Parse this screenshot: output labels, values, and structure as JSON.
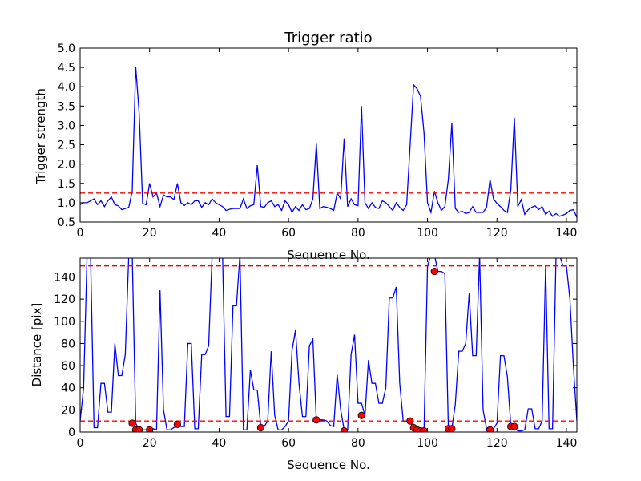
{
  "chart_data": [
    {
      "type": "line",
      "title": "Trigger ratio",
      "xlabel": "Sequence No.",
      "ylabel": "Trigger strength",
      "xlim": [
        0,
        143
      ],
      "ylim": [
        0.5,
        5.0
      ],
      "xticks": [
        "0",
        "20",
        "40",
        "60",
        "80",
        "100",
        "120",
        "140"
      ],
      "yticks": [
        "0.5",
        "1.0",
        "1.5",
        "2.0",
        "2.5",
        "3.0",
        "3.5",
        "4.0",
        "4.5",
        "5.0"
      ],
      "threshold": 1.25,
      "colors": {
        "line": "#0000ff",
        "threshold": "#ff0000"
      },
      "x": [
        0,
        1,
        2,
        3,
        4,
        5,
        6,
        7,
        8,
        9,
        10,
        11,
        12,
        13,
        14,
        15,
        16,
        17,
        18,
        19,
        20,
        21,
        22,
        23,
        24,
        25,
        26,
        27,
        28,
        29,
        30,
        31,
        32,
        33,
        34,
        35,
        36,
        37,
        38,
        39,
        40,
        41,
        42,
        43,
        44,
        45,
        46,
        47,
        48,
        49,
        50,
        51,
        52,
        53,
        54,
        55,
        56,
        57,
        58,
        59,
        60,
        61,
        62,
        63,
        64,
        65,
        66,
        67,
        68,
        69,
        70,
        71,
        72,
        73,
        74,
        75,
        76,
        77,
        78,
        79,
        80,
        81,
        82,
        83,
        84,
        85,
        86,
        87,
        88,
        89,
        90,
        91,
        92,
        93,
        94,
        95,
        96,
        97,
        98,
        99,
        100,
        101,
        102,
        103,
        104,
        105,
        106,
        107,
        108,
        109,
        110,
        111,
        112,
        113,
        114,
        115,
        116,
        117,
        118,
        119,
        120,
        121,
        122,
        123,
        124,
        125,
        126,
        127,
        128,
        129,
        130,
        131,
        132,
        133,
        134,
        135,
        136,
        137,
        138,
        139,
        140,
        141,
        142,
        143
      ],
      "values": [
        0.95,
        1.0,
        1.0,
        1.05,
        1.1,
        0.95,
        1.05,
        0.9,
        1.05,
        1.15,
        0.95,
        0.92,
        0.82,
        0.85,
        0.88,
        1.3,
        4.52,
        3.3,
        0.98,
        0.95,
        1.5,
        1.15,
        1.25,
        0.9,
        1.2,
        1.15,
        1.15,
        1.08,
        1.5,
        1.0,
        0.93,
        1.0,
        0.95,
        1.05,
        1.05,
        0.88,
        1.0,
        0.95,
        1.1,
        1.0,
        0.95,
        0.9,
        0.8,
        0.83,
        0.85,
        0.85,
        0.85,
        1.1,
        0.85,
        0.92,
        0.95,
        1.97,
        0.9,
        0.88,
        1.0,
        1.05,
        0.9,
        0.95,
        0.8,
        1.05,
        0.95,
        0.75,
        0.9,
        0.8,
        0.95,
        0.82,
        0.85,
        1.1,
        2.52,
        0.85,
        0.9,
        0.88,
        0.85,
        0.8,
        1.25,
        1.1,
        2.66,
        0.9,
        1.1,
        0.95,
        0.92,
        3.5,
        1.0,
        0.85,
        1.0,
        0.88,
        0.85,
        1.05,
        1.0,
        0.9,
        0.8,
        1.0,
        0.88,
        0.8,
        0.95,
        2.5,
        4.05,
        3.95,
        3.75,
        2.8,
        1.0,
        0.75,
        1.3,
        1.0,
        0.8,
        0.9,
        1.6,
        3.05,
        0.85,
        0.75,
        0.78,
        0.72,
        0.75,
        0.9,
        0.75,
        0.75,
        0.75,
        0.88,
        1.6,
        1.1,
        0.98,
        0.9,
        0.8,
        0.75,
        1.35,
        3.2,
        0.9,
        1.08,
        0.7,
        0.82,
        0.88,
        0.92,
        0.82,
        0.9,
        0.7,
        0.78,
        0.65,
        0.72,
        0.65,
        0.68,
        0.72,
        0.8,
        0.82,
        0.62
      ]
    },
    {
      "type": "line",
      "title": "",
      "xlabel": "Sequence No.",
      "ylabel": "Distance [pix]",
      "xlim": [
        0,
        143
      ],
      "ylim": [
        0,
        157
      ],
      "xticks": [
        "0",
        "20",
        "40",
        "60",
        "80",
        "100",
        "120",
        "140"
      ],
      "yticks": [
        "0",
        "20",
        "40",
        "60",
        "80",
        "100",
        "120",
        "140"
      ],
      "thresholds": [
        150,
        10
      ],
      "colors": {
        "line": "#0000ff",
        "threshold": "#ff0000",
        "marker": "#ff0000"
      },
      "x": [
        0,
        1,
        2,
        3,
        4,
        5,
        6,
        7,
        8,
        9,
        10,
        11,
        12,
        13,
        14,
        15,
        16,
        17,
        18,
        19,
        20,
        21,
        22,
        23,
        24,
        25,
        26,
        27,
        28,
        29,
        30,
        31,
        32,
        33,
        34,
        35,
        36,
        37,
        38,
        39,
        40,
        41,
        42,
        43,
        44,
        45,
        46,
        47,
        48,
        49,
        50,
        51,
        52,
        53,
        54,
        55,
        56,
        57,
        58,
        59,
        60,
        61,
        62,
        63,
        64,
        65,
        66,
        67,
        68,
        69,
        70,
        71,
        72,
        73,
        74,
        75,
        76,
        77,
        78,
        79,
        80,
        81,
        82,
        83,
        84,
        85,
        86,
        87,
        88,
        89,
        90,
        91,
        92,
        93,
        94,
        95,
        96,
        97,
        98,
        99,
        100,
        101,
        102,
        103,
        104,
        105,
        106,
        107,
        108,
        109,
        110,
        111,
        112,
        113,
        114,
        115,
        116,
        117,
        118,
        119,
        120,
        121,
        122,
        123,
        124,
        125,
        126,
        127,
        128,
        129,
        130,
        131,
        132,
        133,
        134,
        135,
        136,
        137,
        138,
        139,
        140,
        141,
        142,
        143
      ],
      "values": [
        10,
        40,
        160,
        160,
        4,
        4,
        44,
        44,
        18,
        18,
        80,
        51,
        51,
        70,
        160,
        160,
        8,
        2,
        2,
        2,
        2,
        3,
        2,
        128,
        20,
        2,
        2,
        4,
        6,
        5,
        5,
        80,
        80,
        3,
        3,
        70,
        70,
        78,
        160,
        160,
        160,
        160,
        14,
        14,
        114,
        114,
        160,
        2,
        2,
        56,
        38,
        38,
        5,
        5,
        10,
        73,
        15,
        2,
        2,
        5,
        10,
        74,
        92,
        44,
        14,
        14,
        78,
        84,
        10,
        11,
        11,
        10,
        6,
        5,
        52,
        20,
        2,
        2,
        70,
        88,
        26,
        26,
        15,
        65,
        44,
        44,
        26,
        26,
        40,
        121,
        121,
        131,
        44,
        10,
        10,
        10,
        2,
        2,
        2,
        2,
        150,
        160,
        160,
        145,
        145,
        143,
        3,
        3,
        25,
        73,
        73,
        80,
        125,
        69,
        69,
        160,
        20,
        3,
        3,
        3,
        8,
        69,
        69,
        50,
        5,
        5,
        1,
        1,
        2,
        21,
        21,
        3,
        3,
        10,
        150,
        3,
        3,
        160,
        160,
        150,
        150,
        120,
        60,
        10
      ],
      "markers": [
        {
          "x": 15,
          "y": 8
        },
        {
          "x": 16,
          "y": 2
        },
        {
          "x": 17,
          "y": 2
        },
        {
          "x": 20,
          "y": 2
        },
        {
          "x": 28,
          "y": 7
        },
        {
          "x": 52,
          "y": 4
        },
        {
          "x": 68,
          "y": 11
        },
        {
          "x": 76,
          "y": 1
        },
        {
          "x": 81,
          "y": 15
        },
        {
          "x": 95,
          "y": 10
        },
        {
          "x": 96,
          "y": 4
        },
        {
          "x": 97,
          "y": 2
        },
        {
          "x": 98,
          "y": 1
        },
        {
          "x": 99,
          "y": 1
        },
        {
          "x": 102,
          "y": 145
        },
        {
          "x": 106,
          "y": 3
        },
        {
          "x": 107,
          "y": 3
        },
        {
          "x": 118,
          "y": 2
        },
        {
          "x": 124,
          "y": 5
        },
        {
          "x": 125,
          "y": 5
        }
      ]
    }
  ]
}
